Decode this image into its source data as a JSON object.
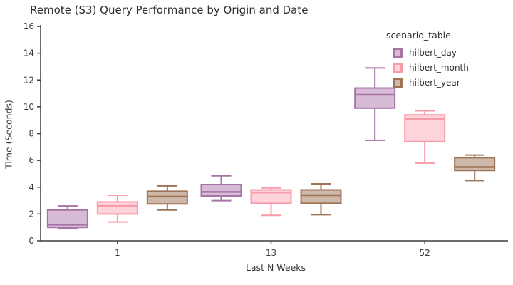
{
  "chart": {
    "title": "Remote (S3) Query Performance by Origin and Date",
    "background": "#ffffff"
  },
  "chart_data": {
    "type": "box",
    "title": "Remote (S3) Query Performance by Origin and Date",
    "xlabel": "Last N Weeks",
    "ylabel": "Time (Seconds)",
    "categories": [
      "1",
      "13",
      "52"
    ],
    "ylim": [
      0,
      16
    ],
    "yticks": [
      0,
      2,
      4,
      6,
      8,
      10,
      12,
      14,
      16
    ],
    "grid": false,
    "legend_title": "scenario_table",
    "legend_position": "top-right-inside",
    "colors": {
      "axis": "#3b3b3b",
      "tick_text": "#3c3c3c",
      "title_text": "#2f2f2f"
    },
    "series": [
      {
        "name": "hilbert_day",
        "fill": "#d8bbd6",
        "stroke": "#a573a5",
        "boxes": [
          {
            "low": 0.9,
            "q1": 1.0,
            "median": 1.2,
            "q3": 2.3,
            "high": 2.6
          },
          {
            "low": 3.0,
            "q1": 3.35,
            "median": 3.65,
            "q3": 4.2,
            "high": 4.85
          },
          {
            "low": 7.5,
            "q1": 9.9,
            "median": 10.9,
            "q3": 11.4,
            "high": 12.9
          }
        ]
      },
      {
        "name": "hilbert_month",
        "fill": "#fed3da",
        "stroke": "#f89ba8",
        "boxes": [
          {
            "low": 1.4,
            "q1": 2.0,
            "median": 2.6,
            "q3": 2.9,
            "high": 3.4
          },
          {
            "low": 1.9,
            "q1": 2.8,
            "median": 3.6,
            "q3": 3.8,
            "high": 3.95
          },
          {
            "low": 5.8,
            "q1": 7.4,
            "median": 9.1,
            "q3": 9.4,
            "high": 9.7
          }
        ]
      },
      {
        "name": "hilbert_year",
        "fill": "#cdb8a9",
        "stroke": "#9c7355",
        "boxes": [
          {
            "low": 2.3,
            "q1": 2.75,
            "median": 3.3,
            "q3": 3.7,
            "high": 4.1
          },
          {
            "low": 1.95,
            "q1": 2.8,
            "median": 3.4,
            "q3": 3.8,
            "high": 4.25
          },
          {
            "low": 4.5,
            "q1": 5.25,
            "median": 5.5,
            "q3": 6.2,
            "high": 6.4
          }
        ]
      }
    ]
  }
}
